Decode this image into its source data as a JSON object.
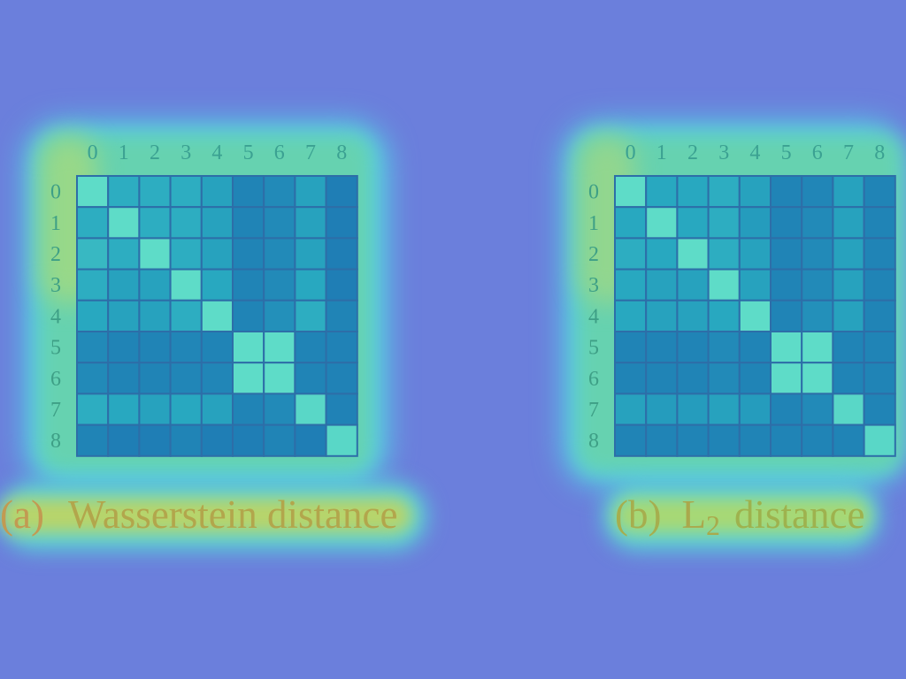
{
  "colors": {
    "background": "#6b7fdc",
    "cell_low": "#1b6cb0",
    "cell_mid": "#28a8c0",
    "cell_high": "#5edcc8",
    "grid_line": "#2d6ea8",
    "tick_label": "#3ba192"
  },
  "chart_data": [
    {
      "type": "heatmap",
      "x_tick_position": "top",
      "x_labels": [
        "0",
        "1",
        "2",
        "3",
        "4",
        "5",
        "6",
        "7",
        "8"
      ],
      "y_labels": [
        "0",
        "1",
        "2",
        "3",
        "4",
        "5",
        "6",
        "7",
        "8"
      ],
      "values": [
        [
          1.0,
          0.55,
          0.55,
          0.55,
          0.45,
          0.2,
          0.25,
          0.45,
          0.15
        ],
        [
          0.55,
          1.0,
          0.55,
          0.55,
          0.45,
          0.2,
          0.25,
          0.45,
          0.15
        ],
        [
          0.65,
          0.55,
          1.0,
          0.55,
          0.45,
          0.2,
          0.25,
          0.45,
          0.15
        ],
        [
          0.55,
          0.45,
          0.45,
          1.0,
          0.5,
          0.2,
          0.25,
          0.5,
          0.15
        ],
        [
          0.5,
          0.45,
          0.45,
          0.55,
          1.0,
          0.2,
          0.3,
          0.55,
          0.2
        ],
        [
          0.25,
          0.2,
          0.2,
          0.22,
          0.2,
          1.0,
          1.0,
          0.2,
          0.18
        ],
        [
          0.25,
          0.2,
          0.2,
          0.22,
          0.22,
          1.0,
          1.0,
          0.2,
          0.18
        ],
        [
          0.55,
          0.5,
          0.45,
          0.5,
          0.45,
          0.2,
          0.25,
          0.95,
          0.18
        ],
        [
          0.2,
          0.15,
          0.15,
          0.2,
          0.15,
          0.15,
          0.2,
          0.15,
          0.95
        ]
      ],
      "caption": {
        "label": "(a)",
        "title": "Wasserstein distance"
      }
    },
    {
      "type": "heatmap",
      "x_tick_position": "top",
      "x_labels": [
        "0",
        "1",
        "2",
        "3",
        "4",
        "5",
        "6",
        "7",
        "8"
      ],
      "y_labels": [
        "0",
        "1",
        "2",
        "3",
        "4",
        "5",
        "6",
        "7",
        "8"
      ],
      "values": [
        [
          1.0,
          0.5,
          0.5,
          0.55,
          0.45,
          0.2,
          0.22,
          0.45,
          0.2
        ],
        [
          0.5,
          1.0,
          0.5,
          0.55,
          0.4,
          0.2,
          0.25,
          0.45,
          0.2
        ],
        [
          0.55,
          0.5,
          1.0,
          0.55,
          0.45,
          0.2,
          0.25,
          0.45,
          0.2
        ],
        [
          0.5,
          0.45,
          0.45,
          1.0,
          0.45,
          0.2,
          0.25,
          0.45,
          0.2
        ],
        [
          0.5,
          0.45,
          0.45,
          0.5,
          1.0,
          0.2,
          0.3,
          0.45,
          0.2
        ],
        [
          0.2,
          0.2,
          0.2,
          0.25,
          0.2,
          1.0,
          1.0,
          0.2,
          0.2
        ],
        [
          0.2,
          0.2,
          0.2,
          0.25,
          0.2,
          1.0,
          1.0,
          0.2,
          0.2
        ],
        [
          0.45,
          0.4,
          0.4,
          0.45,
          0.4,
          0.2,
          0.25,
          0.95,
          0.2
        ],
        [
          0.2,
          0.2,
          0.2,
          0.2,
          0.2,
          0.2,
          0.2,
          0.2,
          0.95
        ]
      ],
      "caption": {
        "label": "(b)",
        "title": "L",
        "title_subscript": "2",
        "title_suffix": "distance"
      }
    }
  ]
}
